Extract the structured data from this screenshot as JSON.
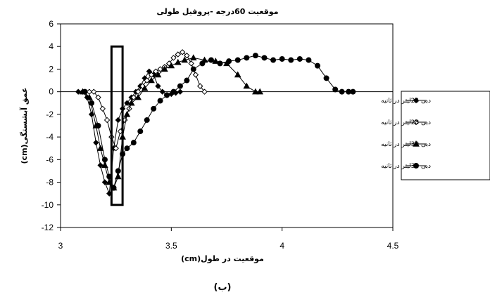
{
  "chart_data": {
    "type": "line",
    "title": "موقعیت 60درجه -پروفیل طولی",
    "xlabel": "موقعیت در طول(cm)",
    "ylabel": "عمق آبشستگی(cm)",
    "caption": "(ب)",
    "xlim": [
      3,
      4.5
    ],
    "ylim": [
      -12,
      6
    ],
    "xticks": [
      3,
      3.5,
      4,
      4.5
    ],
    "xtick_labels": [
      "3",
      "3.5",
      "4",
      "4.5"
    ],
    "yticks": [
      6,
      4,
      2,
      0,
      -2,
      -4,
      -6,
      -8,
      -10,
      -12
    ],
    "ytick_labels": [
      "6",
      "4",
      "2",
      "0",
      "-2",
      "-4",
      "-6",
      "-8",
      "-10",
      "-12"
    ],
    "grid": false,
    "legend_position": "right",
    "highlight_box": {
      "x": [
        3.23,
        3.28
      ],
      "y": [
        -10,
        4
      ]
    },
    "series": [
      {
        "name": "دبی 24لیتر در ثانیه",
        "marker": "diamond-filled",
        "x": [
          3.08,
          3.1,
          3.12,
          3.14,
          3.16,
          3.18,
          3.2,
          3.22,
          3.24,
          3.26,
          3.28,
          3.3,
          3.32,
          3.34,
          3.36,
          3.38,
          3.4,
          3.42,
          3.44,
          3.46,
          3.48,
          3.5,
          3.52,
          3.54
        ],
        "y": [
          0,
          0,
          -0.5,
          -2,
          -4.5,
          -6.5,
          -8,
          -9,
          -5,
          -2.5,
          -1.5,
          -1,
          -0.5,
          0,
          0.5,
          1.2,
          1.8,
          1.5,
          0.5,
          0,
          -0.3,
          -0.2,
          -0.1,
          0
        ]
      },
      {
        "name": "دبی 28لیتر در ثانیه",
        "marker": "diamond-open",
        "x": [
          3.13,
          3.15,
          3.17,
          3.19,
          3.21,
          3.23,
          3.25,
          3.27,
          3.29,
          3.31,
          3.33,
          3.35,
          3.37,
          3.39,
          3.41,
          3.43,
          3.45,
          3.47,
          3.49,
          3.51,
          3.53,
          3.55,
          3.57,
          3.59,
          3.61,
          3.63,
          3.65
        ],
        "y": [
          0,
          0,
          -0.5,
          -1.5,
          -2.5,
          -4,
          -5,
          -3.5,
          -2.5,
          -1.5,
          -0.5,
          0,
          0.5,
          1,
          1.5,
          1.8,
          2,
          2.2,
          2.5,
          3,
          3.3,
          3.5,
          3.2,
          2.5,
          1.5,
          0.5,
          0
        ]
      },
      {
        "name": "دبی 30لیتر در ثانیه",
        "marker": "triangle-filled",
        "x": [
          3.1,
          3.13,
          3.16,
          3.18,
          3.2,
          3.22,
          3.24,
          3.26,
          3.28,
          3.3,
          3.32,
          3.35,
          3.38,
          3.41,
          3.44,
          3.47,
          3.5,
          3.53,
          3.56,
          3.6,
          3.65,
          3.7,
          3.75,
          3.8,
          3.84,
          3.88,
          3.9
        ],
        "y": [
          0,
          -0.5,
          -3,
          -5,
          -6.5,
          -8,
          -8.5,
          -7.5,
          -4,
          -2,
          -1,
          -0.5,
          0.3,
          1,
          1.5,
          2,
          2.3,
          2.6,
          2.8,
          3,
          2.8,
          2.7,
          2.5,
          1.5,
          0.5,
          0,
          0
        ]
      },
      {
        "name": "دبی 32لیتر در ثانیه",
        "marker": "circle-filled",
        "x": [
          3.11,
          3.14,
          3.17,
          3.2,
          3.22,
          3.24,
          3.26,
          3.28,
          3.3,
          3.33,
          3.36,
          3.39,
          3.42,
          3.45,
          3.48,
          3.51,
          3.54,
          3.57,
          3.6,
          3.64,
          3.68,
          3.72,
          3.76,
          3.8,
          3.84,
          3.88,
          3.92,
          3.96,
          4.0,
          4.04,
          4.08,
          4.12,
          4.16,
          4.2,
          4.24,
          4.27,
          4.3,
          4.32
        ],
        "y": [
          0,
          -1,
          -3,
          -6,
          -7.5,
          -8.5,
          -7,
          -5.5,
          -5,
          -4.5,
          -3.5,
          -2.5,
          -1.5,
          -0.8,
          -0.3,
          0,
          0.5,
          1,
          2,
          2.5,
          2.8,
          2.5,
          2.7,
          2.8,
          3,
          3.2,
          3,
          2.8,
          2.9,
          2.8,
          2.9,
          2.8,
          2.3,
          1.2,
          0.2,
          0,
          0,
          0
        ]
      }
    ]
  }
}
